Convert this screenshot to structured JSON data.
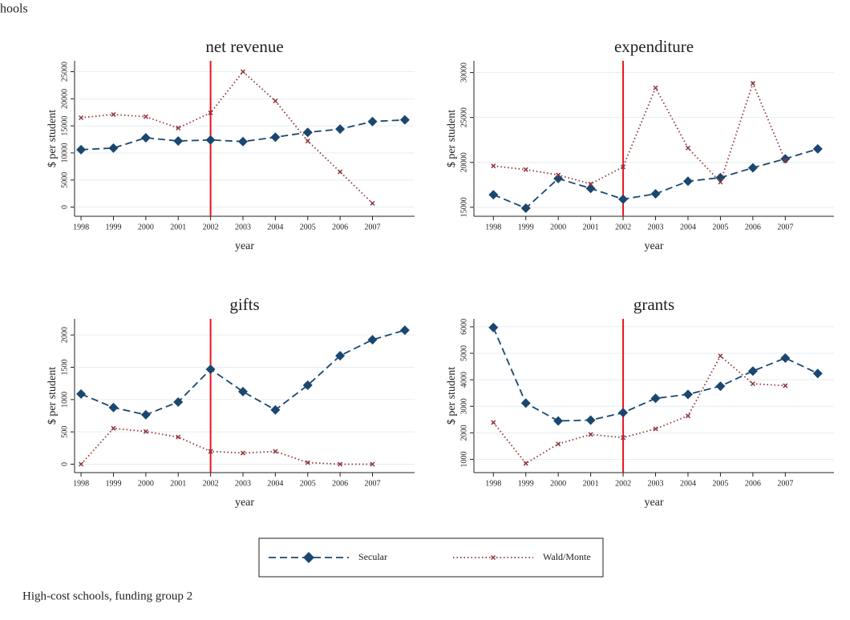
{
  "page_title": "hools",
  "note": "High-cost schools, funding group 2",
  "chart_data": [
    {
      "type": "line",
      "title": "net revenue",
      "xlabel": "year",
      "ylabel": "$ per student",
      "x": [
        1998,
        1999,
        2000,
        2001,
        2002,
        2003,
        2004,
        2005,
        2006,
        2007,
        2008
      ],
      "xlim": [
        1997.8,
        2008.3
      ],
      "xticks": [
        1998,
        1999,
        2000,
        2001,
        2002,
        2003,
        2004,
        2005,
        2006,
        2007
      ],
      "ylim": [
        -1700,
        27000
      ],
      "yticks": [
        0,
        5000,
        10000,
        15000,
        20000,
        25000
      ],
      "grid": true,
      "vline": 2002,
      "vline_color": "#e8151b",
      "series": [
        {
          "name": "Secular",
          "color": "#1a476f",
          "values": [
            10600,
            10900,
            12800,
            12200,
            12400,
            12100,
            12900,
            13800,
            14400,
            15800,
            16100
          ]
        },
        {
          "name": "Wald/Monte",
          "color": "#90353b",
          "values": [
            16500,
            17100,
            16700,
            14600,
            17400,
            25000,
            19600,
            12200,
            6500,
            700,
            null
          ]
        }
      ]
    },
    {
      "type": "line",
      "title": "expenditure",
      "xlabel": "year",
      "ylabel": "$ per student",
      "x": [
        1998,
        1999,
        2000,
        2001,
        2002,
        2003,
        2004,
        2005,
        2006,
        2007,
        2008
      ],
      "xlim": [
        1997.4,
        2008.5
      ],
      "xticks": [
        1998,
        1999,
        2000,
        2001,
        2002,
        2003,
        2004,
        2005,
        2006,
        2007
      ],
      "ylim": [
        14000,
        31300
      ],
      "yticks": [
        15000,
        20000,
        25000,
        30000
      ],
      "grid": true,
      "vline": 2002,
      "vline_color": "#e8151b",
      "series": [
        {
          "name": "Secular",
          "color": "#1a476f",
          "values": [
            16400,
            14900,
            18200,
            17100,
            15900,
            16500,
            17900,
            18300,
            19400,
            20400,
            21500
          ]
        },
        {
          "name": "Wald/Monte",
          "color": "#90353b",
          "values": [
            19600,
            19200,
            18600,
            17600,
            19500,
            28300,
            21600,
            17800,
            28800,
            20200,
            null
          ]
        }
      ]
    },
    {
      "type": "line",
      "title": "gifts",
      "xlabel": "year",
      "ylabel": "$ per student",
      "x": [
        1998,
        1999,
        2000,
        2001,
        2002,
        2003,
        2004,
        2005,
        2006,
        2007,
        2008
      ],
      "xlim": [
        1997.8,
        2008.3
      ],
      "xticks": [
        1998,
        1999,
        2000,
        2001,
        2002,
        2003,
        2004,
        2005,
        2006,
        2007
      ],
      "ylim": [
        -130,
        2250
      ],
      "yticks": [
        0,
        500,
        1000,
        1500,
        2000
      ],
      "grid": true,
      "vline": 2002,
      "vline_color": "#e8151b",
      "series": [
        {
          "name": "Secular",
          "color": "#1a476f",
          "values": [
            1086,
            877,
            765,
            963,
            1469,
            1123,
            840,
            1222,
            1679,
            1926,
            2074
          ]
        },
        {
          "name": "Wald/Monte",
          "color": "#90353b",
          "values": [
            0,
            556,
            506,
            420,
            198,
            173,
            198,
            25,
            0,
            0,
            null
          ]
        }
      ]
    },
    {
      "type": "line",
      "title": "grants",
      "xlabel": "year",
      "ylabel": "$ per student",
      "x": [
        1998,
        1999,
        2000,
        2001,
        2002,
        2003,
        2004,
        2005,
        2006,
        2007,
        2008
      ],
      "xlim": [
        1997.4,
        2008.5
      ],
      "xticks": [
        1998,
        1999,
        2000,
        2001,
        2002,
        2003,
        2004,
        2005,
        2006,
        2007
      ],
      "ylim": [
        500,
        6300
      ],
      "yticks": [
        1000,
        2000,
        3000,
        4000,
        5000,
        6000
      ],
      "grid": true,
      "vline": 2002,
      "vline_color": "#e8151b",
      "series": [
        {
          "name": "Secular",
          "color": "#1a476f",
          "values": [
            5970,
            3120,
            2450,
            2480,
            2760,
            3300,
            3450,
            3760,
            4330,
            4820,
            4240
          ]
        },
        {
          "name": "Wald/Monte",
          "color": "#90353b",
          "values": [
            2390,
            850,
            1580,
            1940,
            1820,
            2150,
            2640,
            4900,
            3850,
            3780,
            null
          ]
        }
      ]
    }
  ]
}
